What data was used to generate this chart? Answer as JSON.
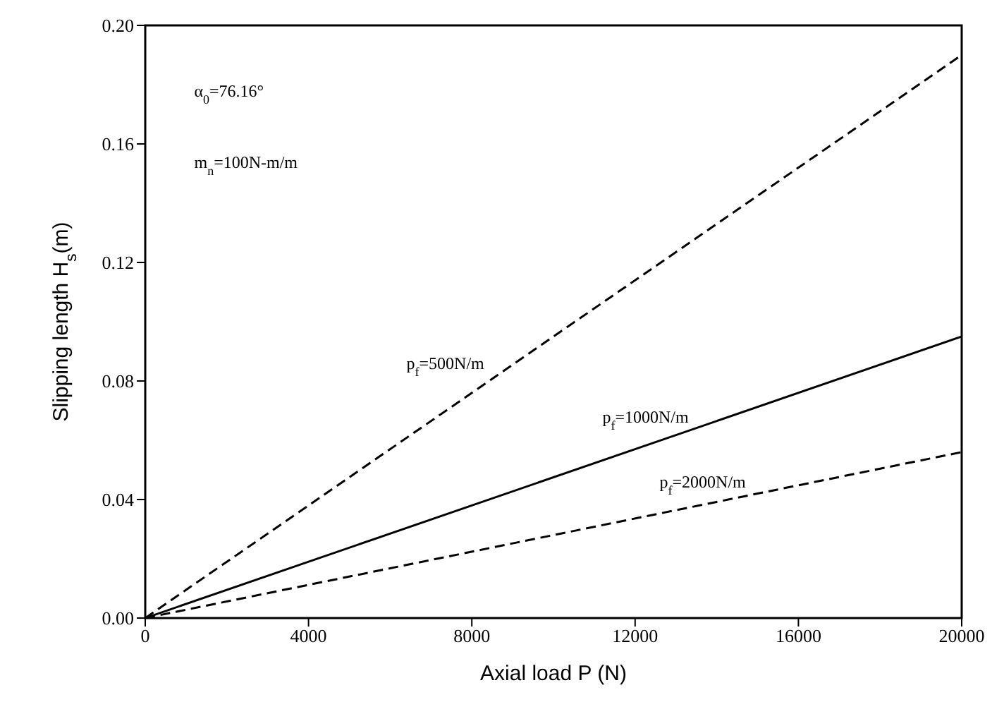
{
  "chart_data": {
    "type": "line",
    "xlabel": "Axial load P (N)",
    "ylabel": "Slipping length H$_{s}$(m)",
    "x": [
      0,
      20000
    ],
    "series": [
      {
        "name": "p$_{f}$=500N/m",
        "color": "#000000",
        "values": [
          0,
          0.19
        ],
        "line_style": "dashed"
      },
      {
        "name": "p$_{f}$=1000N/m",
        "color": "#000000",
        "values": [
          0,
          0.095
        ],
        "line_style": "solid"
      },
      {
        "name": "p$_{f}$=2000N/m",
        "color": "#000000",
        "values": [
          0,
          0.056
        ],
        "line_style": "dashed"
      }
    ],
    "xlim": [
      0,
      20000
    ],
    "xticks": [
      0,
      4000,
      8000,
      12000,
      16000,
      20000
    ],
    "ylim": [
      0,
      0.2
    ],
    "yticks": [
      {
        "value": 0,
        "label": "0.00"
      },
      {
        "value": 0.04,
        "label": "0.04"
      },
      {
        "value": 0.08,
        "label": "0.08"
      },
      {
        "value": 0.12,
        "label": "0.12"
      },
      {
        "value": 0.16,
        "label": "0.16"
      },
      {
        "value": 0.2,
        "label": "0.20"
      }
    ],
    "annotations": [
      "α$_{0}$=76.16°",
      "m$_{n}$=100N-m/m"
    ],
    "grid": false,
    "legend": false,
    "marker": "none"
  }
}
